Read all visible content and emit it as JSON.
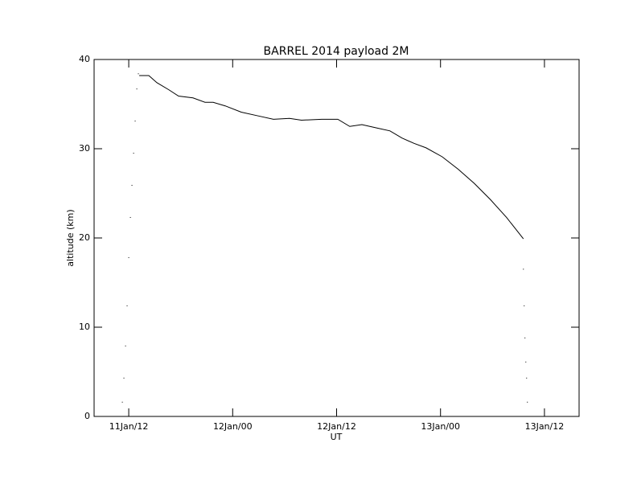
{
  "chart_data": {
    "type": "line",
    "title": "BARREL 2014 payload 2M",
    "x_label": "UT",
    "y_label": "altitude (km)",
    "xlim": [
      8,
      64
    ],
    "xticks": [
      {
        "value": 12,
        "label": "11Jan/12"
      },
      {
        "value": 24,
        "label": "12Jan/00"
      },
      {
        "value": 36,
        "label": "12Jan/12"
      },
      {
        "value": 48,
        "label": "13Jan/00"
      },
      {
        "value": 60,
        "label": "13Jan/12"
      }
    ],
    "ylim": [
      0,
      40
    ],
    "yticks": [
      0,
      10,
      20,
      30,
      40
    ],
    "series": [
      {
        "style": "dots",
        "color": "#000000",
        "x": [
          11.07,
          11.26,
          11.44,
          11.63,
          11.81,
          12.0,
          12.19,
          12.37,
          12.56,
          12.74,
          12.93,
          13.11
        ],
        "values": [
          0,
          1.6,
          4.3,
          7.9,
          12.4,
          17.8,
          22.3,
          25.9,
          29.5,
          33.1,
          36.7,
          38.4
        ]
      },
      {
        "style": "line",
        "color": "#000000",
        "x": [
          13.21,
          14.32,
          15.25,
          16.64,
          17.75,
          19.42,
          20.81,
          21.75,
          23.14,
          24.99,
          26.85,
          28.71,
          30.56,
          31.95,
          34.28,
          36.14,
          37.52,
          38.92,
          40.77,
          42.16,
          43.55,
          44.94,
          46.33,
          48.19,
          50.04,
          51.91,
          53.76,
          55.62,
          57.57
        ],
        "values": [
          38.2,
          38.2,
          37.4,
          36.6,
          35.9,
          35.7,
          35.2,
          35.2,
          34.8,
          34.1,
          33.7,
          33.3,
          33.4,
          33.2,
          33.3,
          33.3,
          32.5,
          32.7,
          32.3,
          32.0,
          31.2,
          30.6,
          30.1,
          29.1,
          27.7,
          26.1,
          24.3,
          22.3,
          19.9
        ]
      },
      {
        "style": "dots",
        "color": "#000000",
        "x": [
          57.57,
          57.66,
          57.75,
          57.85,
          57.94,
          58.03
        ],
        "values": [
          16.5,
          12.4,
          8.8,
          6.1,
          4.3,
          1.6
        ]
      }
    ]
  }
}
